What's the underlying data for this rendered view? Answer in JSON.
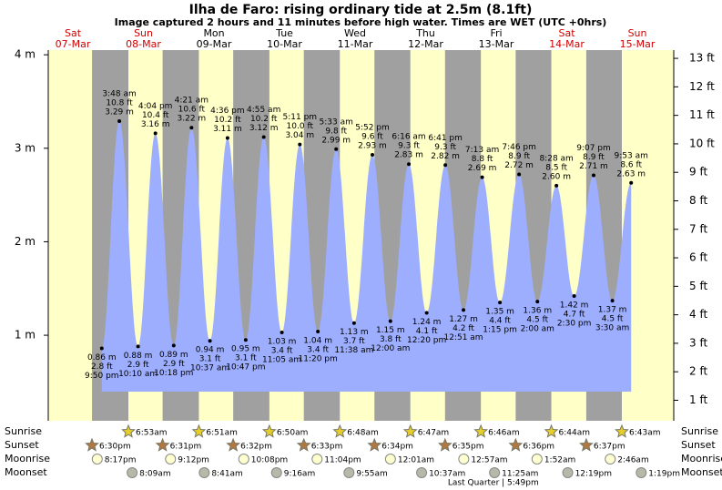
{
  "chart_data": {
    "type": "area",
    "title": "Ilha de Faro: rising  ordinary tide at 2.5m (8.1ft)",
    "subtitle": "Image captured 2 hours and 11 minutes before high water. Times are WET (UTC +0hrs)",
    "color": "#9daeff",
    "ylim": [
      0.085,
      4.05
    ],
    "yticks": [
      {
        "value": 1,
        "label": "1 m"
      },
      {
        "value": 2,
        "label": "2 m"
      },
      {
        "value": 3,
        "label": "3 m"
      },
      {
        "value": 4,
        "label": "4 m"
      }
    ],
    "y2lim": [
      0.28,
      13.29
    ],
    "y2ticks": [
      {
        "value": 1,
        "label": "1 ft"
      },
      {
        "value": 2,
        "label": "2 ft"
      },
      {
        "value": 3,
        "label": "3 ft"
      },
      {
        "value": 4,
        "label": "4 ft"
      },
      {
        "value": 5,
        "label": "5 ft"
      },
      {
        "value": 6,
        "label": "6 ft"
      },
      {
        "value": 7,
        "label": "7 ft"
      },
      {
        "value": 8,
        "label": "8 ft"
      },
      {
        "value": 9,
        "label": "9 ft"
      },
      {
        "value": 10,
        "label": "10 ft"
      },
      {
        "value": 11,
        "label": "11 ft"
      },
      {
        "value": 12,
        "label": "12 ft"
      },
      {
        "value": 13,
        "label": "13 ft"
      }
    ],
    "rows": [
      "Sunrise",
      "Sunset",
      "Moonrise",
      "Moonset"
    ],
    "days": [
      {
        "weekday": "Sat",
        "date": "07-Mar",
        "tides": [
          {
            "time": "9:50 pm",
            "ft": "2.8 ft",
            "value": 0.86,
            "value_label": "0.86 m"
          }
        ],
        "sunset": "6:30pm",
        "moonrise": "8:17pm"
      },
      {
        "weekday": "Sun",
        "date": "08-Mar",
        "tides": [
          {
            "time": "3:48 am",
            "ft": "10.8 ft",
            "value": 3.29,
            "value_label": "3.29 m"
          },
          {
            "time": "10:10 am",
            "ft": "2.9 ft",
            "value": 0.88,
            "value_label": "0.88 m"
          },
          {
            "time": "4:04 pm",
            "ft": "10.4 ft",
            "value": 3.16,
            "value_label": "3.16 m"
          },
          {
            "time": "10:18 pm",
            "ft": "2.9 ft",
            "value": 0.89,
            "value_label": "0.89 m"
          }
        ],
        "sunrise": "6:53am",
        "sunset": "6:31pm",
        "moonrise": "9:12pm",
        "moonset": "8:09am"
      },
      {
        "weekday": "Mon",
        "date": "09-Mar",
        "tides": [
          {
            "time": "4:21 am",
            "ft": "10.6 ft",
            "value": 3.22,
            "value_label": "3.22 m"
          },
          {
            "time": "10:37 am",
            "ft": "3.1 ft",
            "value": 0.94,
            "value_label": "0.94 m"
          },
          {
            "time": "4:36 pm",
            "ft": "10.2 ft",
            "value": 3.11,
            "value_label": "3.11 m"
          },
          {
            "time": "10:47 pm",
            "ft": "3.1 ft",
            "value": 0.95,
            "value_label": "0.95 m"
          }
        ],
        "sunrise": "6:51am",
        "sunset": "6:32pm",
        "moonrise": "10:08pm",
        "moonset": "8:41am"
      },
      {
        "weekday": "Tue",
        "date": "10-Mar",
        "tides": [
          {
            "time": "4:55 am",
            "ft": "10.2 ft",
            "value": 3.12,
            "value_label": "3.12 m"
          },
          {
            "time": "11:05 am",
            "ft": "3.4 ft",
            "value": 1.03,
            "value_label": "1.03 m"
          },
          {
            "time": "5:11 pm",
            "ft": "10.0 ft",
            "value": 3.04,
            "value_label": "3.04 m"
          },
          {
            "time": "11:20 pm",
            "ft": "3.4 ft",
            "value": 1.04,
            "value_label": "1.04 m"
          }
        ],
        "sunrise": "6:50am",
        "sunset": "6:33pm",
        "moonrise": "11:04pm",
        "moonset": "9:16am"
      },
      {
        "weekday": "Wed",
        "date": "11-Mar",
        "tides": [
          {
            "time": "5:33 am",
            "ft": "9.8 ft",
            "value": 2.99,
            "value_label": "2.99 m"
          },
          {
            "time": "11:38 am",
            "ft": "3.7 ft",
            "value": 1.13,
            "value_label": "1.13 m"
          },
          {
            "time": "5:52 pm",
            "ft": "9.6 ft",
            "value": 2.93,
            "value_label": "2.93 m"
          }
        ],
        "sunrise": "6:48am",
        "sunset": "6:34pm",
        "moonset": "9:55am"
      },
      {
        "weekday": "Thu",
        "date": "12-Mar",
        "tides": [
          {
            "time": "12:00 am",
            "ft": "3.8 ft",
            "value": 1.15,
            "value_label": "1.15 m"
          },
          {
            "time": "6:16 am",
            "ft": "9.3 ft",
            "value": 2.83,
            "value_label": "2.83 m"
          },
          {
            "time": "12:20 pm",
            "ft": "4.1 ft",
            "value": 1.24,
            "value_label": "1.24 m"
          },
          {
            "time": "6:41 pm",
            "ft": "9.3 ft",
            "value": 2.82,
            "value_label": "2.82 m"
          }
        ],
        "sunrise": "6:47am",
        "sunset": "6:35pm",
        "moonrise": "12:01am",
        "moonset": "10:37am"
      },
      {
        "weekday": "Fri",
        "date": "13-Mar",
        "tides": [
          {
            "time": "12:51 am",
            "ft": "4.2 ft",
            "value": 1.27,
            "value_label": "1.27 m"
          },
          {
            "time": "7:13 am",
            "ft": "8.8 ft",
            "value": 2.69,
            "value_label": "2.69 m"
          },
          {
            "time": "1:15 pm",
            "ft": "4.4 ft",
            "value": 1.35,
            "value_label": "1.35 m"
          },
          {
            "time": "7:46 pm",
            "ft": "8.9 ft",
            "value": 2.72,
            "value_label": "2.72 m"
          }
        ],
        "sunrise": "6:46am",
        "sunset": "6:36pm",
        "moonrise": "12:57am",
        "moonset": "11:25am",
        "phase": "Last Quarter | 5:49pm"
      },
      {
        "weekday": "Sat",
        "date": "14-Mar",
        "tides": [
          {
            "time": "2:00 am",
            "ft": "4.5 ft",
            "value": 1.36,
            "value_label": "1.36 m"
          },
          {
            "time": "8:28 am",
            "ft": "8.5 ft",
            "value": 2.6,
            "value_label": "2.60 m"
          },
          {
            "time": "2:30 pm",
            "ft": "4.7 ft",
            "value": 1.42,
            "value_label": "1.42 m"
          },
          {
            "time": "9:07 pm",
            "ft": "8.9 ft",
            "value": 2.71,
            "value_label": "2.71 m"
          }
        ],
        "sunrise": "6:44am",
        "sunset": "6:37pm",
        "moonrise": "1:52am",
        "moonset": "12:19pm"
      },
      {
        "weekday": "Sun",
        "date": "15-Mar",
        "tides": [
          {
            "time": "3:30 am",
            "ft": "4.5 ft",
            "value": 1.37,
            "value_label": "1.37 m"
          },
          {
            "time": "9:53 am",
            "ft": "8.6 ft",
            "value": 2.63,
            "value_label": "2.63 m"
          }
        ],
        "sunrise": "6:43am",
        "moonrise": "2:46am",
        "moonset": "1:19pm"
      }
    ]
  }
}
